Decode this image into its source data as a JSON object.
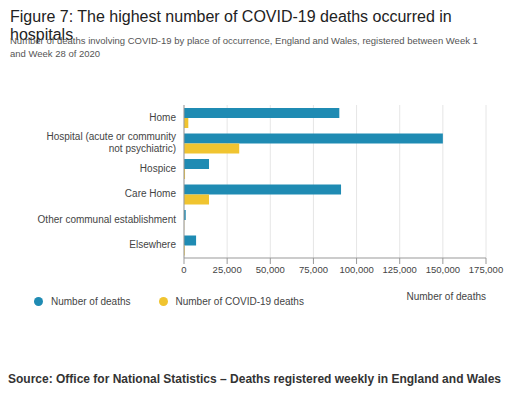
{
  "chart_data": {
    "type": "bar",
    "orientation": "horizontal",
    "title": "Figure 7: The highest number of COVID-19 deaths occurred in hospitals",
    "subtitle": "Number of deaths involving COVID-19 by place of occurrence, England and Wales, registered between Week 1 and Week 28 of 2020",
    "categories": [
      "Home",
      "Hospital (acute or community not psychiatric)",
      "Hospice",
      "Care Home",
      "Other communal establishment",
      "Elsewhere"
    ],
    "series": [
      {
        "name": "Number of deaths",
        "color": "#1f8bb3",
        "values": [
          90000,
          150000,
          14500,
          91000,
          1000,
          7000
        ]
      },
      {
        "name": "Number of COVID-19 deaths",
        "color": "#f0c430",
        "values": [
          2500,
          32000,
          600,
          14500,
          100,
          400
        ]
      }
    ],
    "x_label": "Number of deaths",
    "xlim": [
      0,
      175000
    ],
    "xticks": [
      0,
      {
        "value": 25000,
        "label": "25,000"
      },
      {
        "value": 50000,
        "label": "50,000"
      },
      {
        "value": 75000,
        "label": "75,000"
      },
      {
        "value": 100000,
        "label": "100,000"
      },
      {
        "value": 125000,
        "label": "125,000"
      },
      {
        "value": 150000,
        "label": "150,000"
      },
      {
        "value": 175000,
        "label": "175,000"
      }
    ],
    "grid": true,
    "legend": "bottom left",
    "source": "Source: Office for National Statistics – Deaths registered weekly in England and Wales"
  }
}
